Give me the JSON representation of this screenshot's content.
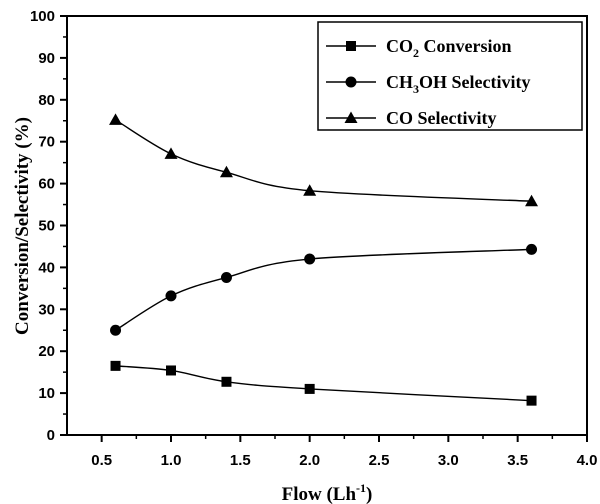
{
  "chart_data": {
    "type": "line",
    "xlabel": "Flow (Lh",
    "xlabel_sup": "-1",
    "xlabel_close": ")",
    "ylabel": "Conversion/Selectivity (%)",
    "xlim": [
      0.25,
      4.0
    ],
    "ylim": [
      0,
      100
    ],
    "x_ticks": [
      "0.5",
      "1.0",
      "1.5",
      "2.0",
      "2.5",
      "3.0",
      "3.5",
      "4.0"
    ],
    "x_tick_values": [
      0.5,
      1.0,
      1.5,
      2.0,
      2.5,
      3.0,
      3.5,
      4.0
    ],
    "y_ticks": [
      "0",
      "10",
      "20",
      "30",
      "40",
      "50",
      "60",
      "70",
      "80",
      "90",
      "100"
    ],
    "y_tick_values": [
      0,
      10,
      20,
      30,
      40,
      50,
      60,
      70,
      80,
      90,
      100
    ],
    "grid": false,
    "legend_position": "top-right",
    "x": [
      0.6,
      1.0,
      1.4,
      2.0,
      3.6
    ],
    "series": [
      {
        "name_parts": [
          "CO",
          "2",
          " Conversion"
        ],
        "marker": "square",
        "values": [
          16.5,
          15.4,
          12.7,
          11.0,
          8.2
        ]
      },
      {
        "name_parts": [
          "CH",
          "3",
          "OH Selectivity"
        ],
        "marker": "circle",
        "values": [
          25.0,
          33.2,
          37.6,
          42.0,
          44.3
        ]
      },
      {
        "name_parts": [
          "CO Selectivity",
          "",
          ""
        ],
        "marker": "triangle",
        "values": [
          75.2,
          67.1,
          62.7,
          58.3,
          55.8
        ]
      }
    ]
  }
}
